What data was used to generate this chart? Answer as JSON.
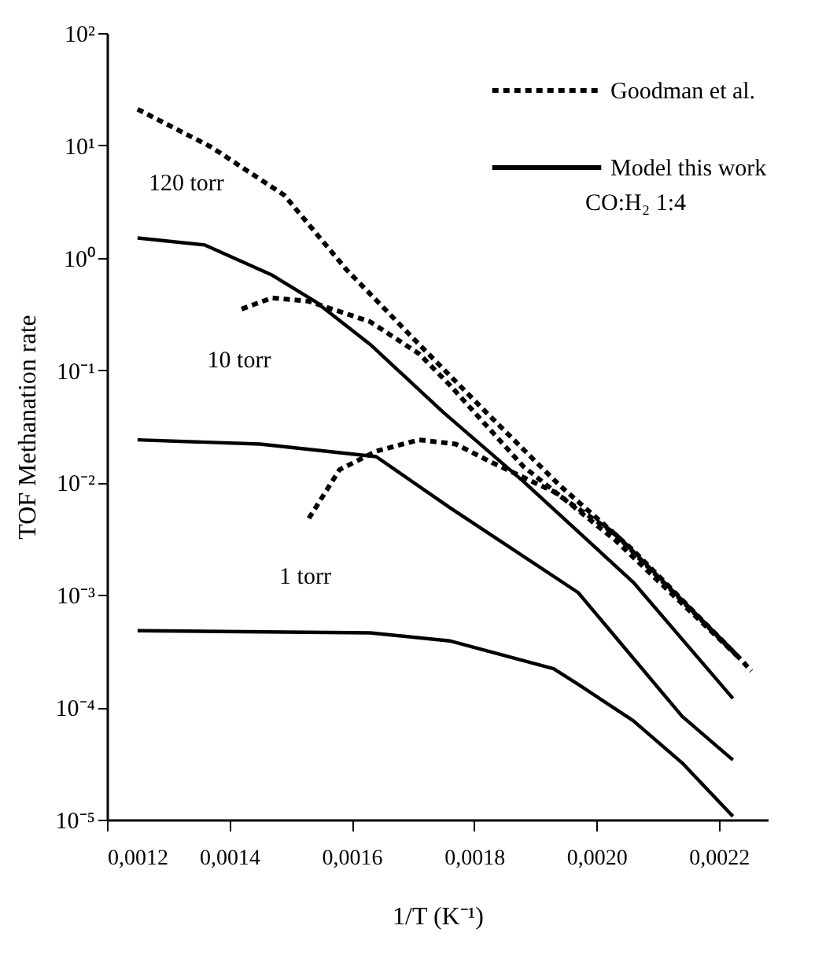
{
  "chart_data": {
    "type": "line",
    "xlabel": "1/T (K⁻¹)",
    "ylabel": "TOF Methanation rate",
    "xlim": [
      0.0012,
      0.00228
    ],
    "xticks": [
      {
        "value": 0.0012,
        "label": "0,0012"
      },
      {
        "value": 0.0014,
        "label": "0,0014"
      },
      {
        "value": 0.0016,
        "label": "0,0016"
      },
      {
        "value": 0.0018,
        "label": "0,0018"
      },
      {
        "value": 0.002,
        "label": "0,0020"
      },
      {
        "value": 0.0022,
        "label": "0,0022"
      }
    ],
    "ylim": [
      1e-05,
      100
    ],
    "yticks": [
      {
        "value": 1e-05,
        "label": "10⁻⁵"
      },
      {
        "value": 0.0001,
        "label": "10⁻⁴"
      },
      {
        "value": 0.001,
        "label": "10⁻³"
      },
      {
        "value": 0.01,
        "label": "10⁻²"
      },
      {
        "value": 0.1,
        "label": "10⁻¹"
      },
      {
        "value": 1,
        "label": "10⁰"
      },
      {
        "value": 10,
        "label": "10¹"
      },
      {
        "value": 100,
        "label": "10²"
      }
    ],
    "log": "y",
    "grid": false,
    "legend": "top right",
    "marker": "none",
    "series": [
      {
        "name": "Goodman et al.",
        "color": "#000000",
        "line_style": "dotted",
        "x": [
          0.00125,
          0.00137,
          0.00149,
          0.00159,
          0.00171,
          0.00182,
          0.00194,
          0.00206,
          0.002238,
          0.002253
        ],
        "values": [
          21,
          9.7,
          3.6,
          0.8,
          0.17,
          0.042,
          0.0094,
          0.0025,
          0.00026,
          0.00021
        ]
      },
      {
        "color": "#000000",
        "line_style": "dotted",
        "x": [
          0.00142,
          0.00147,
          0.00153,
          0.00163,
          0.00171,
          0.00176,
          0.00188,
          0.00203,
          0.002235
        ],
        "values": [
          0.35,
          0.44,
          0.41,
          0.27,
          0.14,
          0.074,
          0.014,
          0.0031,
          0.00027
        ]
      },
      {
        "color": "#000000",
        "line_style": "dotted",
        "x": [
          0.00153,
          0.00158,
          0.00164,
          0.00171,
          0.00177,
          0.00183,
          0.00193,
          0.00203,
          0.002235
        ],
        "values": [
          0.0048,
          0.013,
          0.019,
          0.024,
          0.022,
          0.015,
          0.0083,
          0.0035,
          0.00027
        ]
      },
      {
        "name": "Model this work",
        "color": "#000000",
        "line_style": "solid",
        "x": [
          0.00125,
          0.00136,
          0.00147,
          0.00154,
          0.00163,
          0.00175,
          0.00188,
          0.00206,
          0.002223
        ],
        "values": [
          1.5,
          1.3,
          0.7,
          0.41,
          0.17,
          0.042,
          0.0103,
          0.0013,
          0.00012
        ]
      },
      {
        "color": "#000000",
        "line_style": "solid",
        "x": [
          0.00125,
          0.00145,
          0.00164,
          0.00176,
          0.00197,
          0.00214,
          0.002223
        ],
        "values": [
          0.024,
          0.022,
          0.017,
          0.006,
          0.00105,
          8.3e-05,
          3.4e-05
        ]
      },
      {
        "color": "#000000",
        "line_style": "solid",
        "x": [
          0.00125,
          0.00163,
          0.00176,
          0.00193,
          0.00197,
          0.00206,
          0.00214,
          0.002223
        ],
        "values": [
          0.00048,
          0.00046,
          0.00039,
          0.00022,
          0.00016,
          7.6e-05,
          3.2e-05,
          1.07e-05
        ]
      }
    ],
    "annotations": [
      "120 torr",
      "10 torr",
      "1 torr",
      "CO:H₂ 1:4"
    ]
  }
}
